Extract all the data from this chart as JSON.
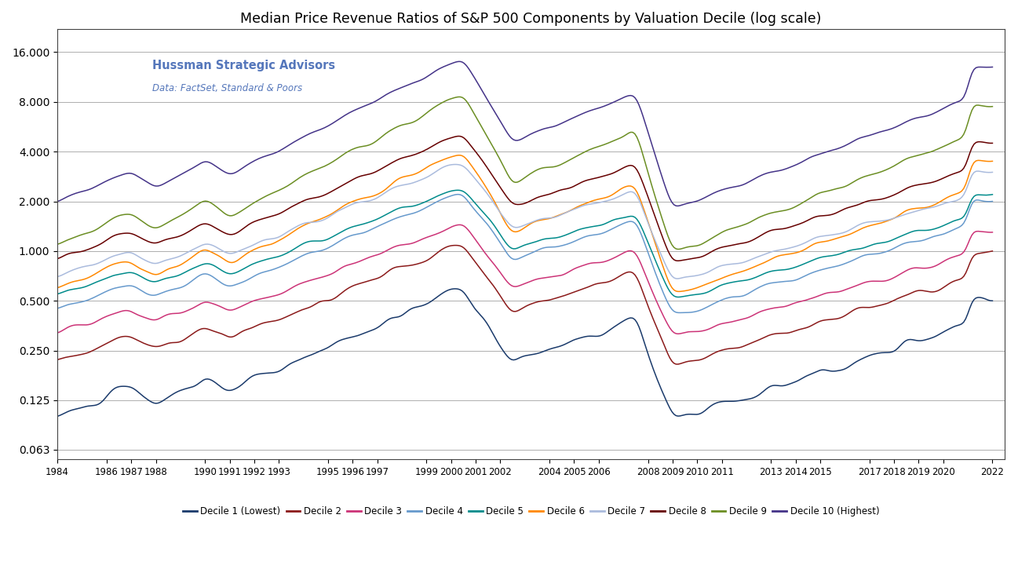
{
  "title": "Median Price Revenue Ratios of S&P 500 Components by Valuation Decile (log scale)",
  "attribution_line1": "Hussman Strategic Advisors",
  "attribution_line2": "Data: FactSet, Standard & Poors",
  "yticks": [
    0.063,
    0.125,
    0.25,
    0.5,
    1.0,
    2.0,
    4.0,
    8.0,
    16.0
  ],
  "ytick_labels": [
    "0.063",
    "0.125",
    "0.250",
    "0.500",
    "1.000",
    "2.000",
    "4.000",
    "8.000",
    "16.000"
  ],
  "xtick_years": [
    1984,
    1986,
    1987,
    1988,
    1990,
    1991,
    1992,
    1993,
    1995,
    1996,
    1997,
    1999,
    2000,
    2001,
    2002,
    2004,
    2005,
    2006,
    2008,
    2009,
    2010,
    2011,
    2013,
    2014,
    2015,
    2017,
    2018,
    2019,
    2020,
    2022
  ],
  "decile_colors": [
    "#1a3a6b",
    "#8b1a1a",
    "#cc3377",
    "#6699cc",
    "#008b8b",
    "#ff8800",
    "#aabbdd",
    "#660000",
    "#6b8e23",
    "#443388"
  ],
  "decile_labels": [
    "Decile 1 (Lowest)",
    "Decile 2",
    "Decile 3",
    "Decile 4",
    "Decile 5",
    "Decile 6",
    "Decile 7",
    "Decile 8",
    "Decile 9",
    "Decile 10 (Highest)"
  ],
  "background_color": "#ffffff",
  "grid_color": "#999999"
}
